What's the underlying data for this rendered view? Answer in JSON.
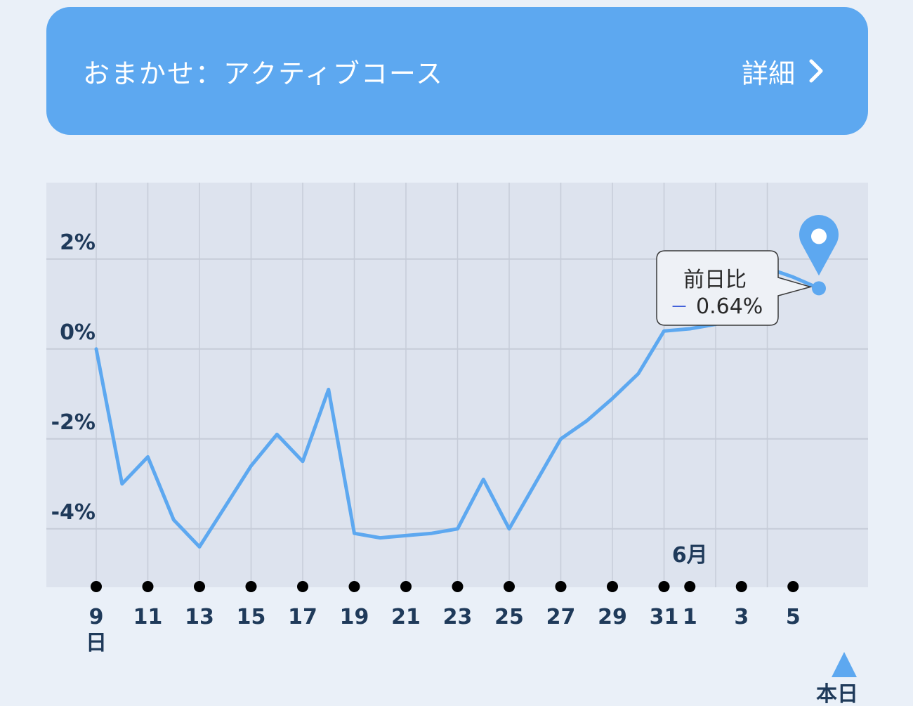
{
  "banner": {
    "title": "おまかせ：アクティブコース",
    "detail_label": "詳細"
  },
  "colors": {
    "banner_bg": "#5da8f0",
    "line": "#5da8f0",
    "plot_bg": "#dde3ee",
    "grid": "#c6ccd8",
    "axis_text": "#1f3a5a",
    "minus_sign": "#3b5bd8"
  },
  "chart_data": {
    "type": "line",
    "title": "",
    "xlabel": "",
    "ylabel": "",
    "ylim": [
      -5.3,
      3.7
    ],
    "y_ticks": [
      2,
      0,
      -2,
      -4
    ],
    "y_tick_labels": [
      "2%",
      "0%",
      "-2%",
      "-4%"
    ],
    "x_tick_labels": [
      "9",
      "11",
      "13",
      "15",
      "17",
      "19",
      "21",
      "23",
      "25",
      "27",
      "29",
      "31",
      "1",
      "3",
      "5"
    ],
    "x_tick_days": [
      0,
      2,
      4,
      6,
      8,
      10,
      12,
      14,
      16,
      18,
      20,
      22,
      23,
      25,
      27
    ],
    "x_first_sublabel": "日",
    "month_marker": {
      "label": "6月",
      "day": 23
    },
    "today_marker": {
      "label": "本日",
      "day": 28
    },
    "series": [
      {
        "x": [
          0,
          1,
          2,
          3,
          4,
          5,
          6,
          7,
          8,
          9,
          10,
          11,
          12,
          13,
          14,
          15,
          16,
          17,
          18,
          19,
          20,
          21,
          22,
          23,
          24,
          25,
          26,
          27,
          28
        ],
        "values": [
          0.0,
          -3.0,
          -2.4,
          -3.8,
          -4.4,
          -3.5,
          -2.6,
          -1.9,
          -2.5,
          -0.9,
          -4.1,
          -4.2,
          -4.15,
          -4.1,
          -4.0,
          -2.9,
          -4.0,
          -3.0,
          -2.0,
          -1.6,
          -1.1,
          -0.55,
          0.4,
          0.45,
          0.55,
          2.0,
          1.8,
          1.6,
          1.35
        ]
      }
    ],
    "tooltip": {
      "title": "前日比",
      "sign": "－",
      "value": "0.64%"
    }
  }
}
